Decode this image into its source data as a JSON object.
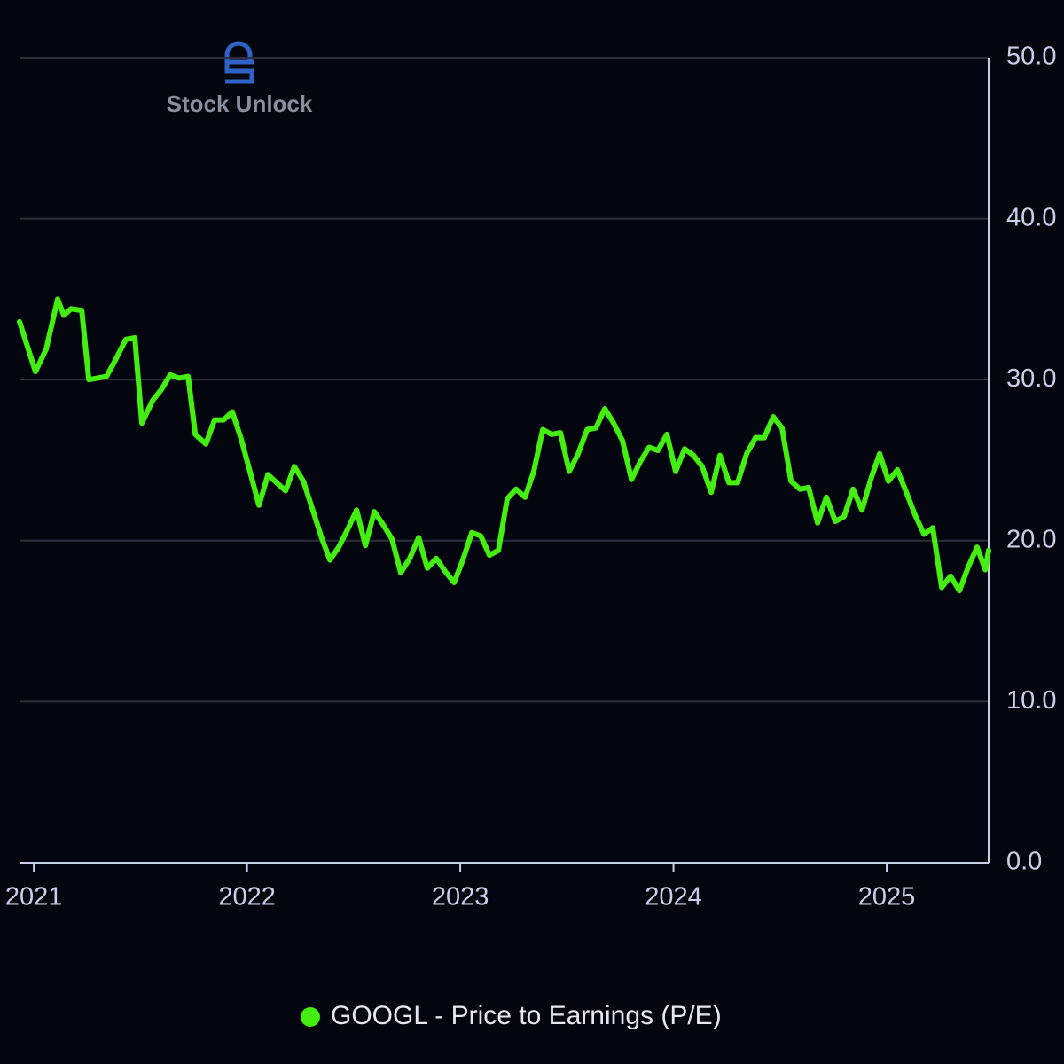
{
  "chart_data": {
    "type": "line",
    "watermark": "Stock Unlock",
    "x": [
      2020.933,
      2021.008,
      2021.058,
      2021.112,
      2021.141,
      2021.175,
      2021.225,
      2021.258,
      2021.341,
      2021.374,
      2021.432,
      2021.474,
      2021.507,
      2021.557,
      2021.599,
      2021.64,
      2021.682,
      2021.724,
      2021.757,
      2021.807,
      2021.848,
      2021.89,
      2021.931,
      2021.973,
      2022.056,
      2022.098,
      2022.139,
      2022.181,
      2022.222,
      2022.264,
      2022.306,
      2022.347,
      2022.389,
      2022.43,
      2022.472,
      2022.514,
      2022.555,
      2022.597,
      2022.638,
      2022.68,
      2022.721,
      2022.763,
      2022.805,
      2022.846,
      2022.888,
      2022.929,
      2022.971,
      2023.012,
      2023.054,
      2023.096,
      2023.137,
      2023.179,
      2023.22,
      2023.262,
      2023.304,
      2023.345,
      2023.387,
      2023.428,
      2023.47,
      2023.511,
      2023.553,
      2023.595,
      2023.636,
      2023.678,
      2023.719,
      2023.761,
      2023.803,
      2023.844,
      2023.886,
      2023.927,
      2023.969,
      2024.01,
      2024.052,
      2024.094,
      2024.135,
      2024.177,
      2024.218,
      2024.26,
      2024.301,
      2024.343,
      2024.385,
      2024.426,
      2024.468,
      2024.509,
      2024.551,
      2024.593,
      2024.634,
      2024.676,
      2024.717,
      2024.759,
      2024.8,
      2024.842,
      2024.884,
      2024.925,
      2024.967,
      2025.008,
      2025.05,
      2025.092,
      2025.133,
      2025.175,
      2025.216,
      2025.258,
      2025.299,
      2025.341,
      2025.383,
      2025.424,
      2025.462,
      2025.478
    ],
    "series": [
      {
        "name": "GOOGL - Price to Earnings (P/E)",
        "color": "#44ee11",
        "values": [
          33.6,
          30.5,
          31.9,
          35.0,
          34.0,
          34.4,
          34.3,
          30.0,
          30.2,
          31.0,
          32.5,
          32.6,
          27.3,
          28.7,
          29.4,
          30.3,
          30.1,
          30.2,
          26.6,
          26.0,
          27.5,
          27.5,
          28.0,
          26.3,
          22.2,
          24.1,
          23.6,
          23.1,
          24.6,
          23.7,
          22.0,
          20.3,
          18.8,
          19.6,
          20.7,
          21.9,
          19.7,
          21.8,
          21.0,
          20.1,
          18.0,
          18.9,
          20.2,
          18.3,
          18.9,
          18.1,
          17.4,
          18.8,
          20.5,
          20.3,
          19.1,
          19.4,
          22.6,
          23.2,
          22.7,
          24.3,
          26.9,
          26.6,
          26.7,
          24.3,
          25.4,
          26.9,
          27.0,
          28.2,
          27.3,
          26.2,
          23.8,
          24.9,
          25.8,
          25.6,
          26.6,
          24.3,
          25.7,
          25.3,
          24.6,
          23.0,
          25.3,
          23.6,
          23.6,
          25.4,
          26.4,
          26.4,
          27.7,
          27.0,
          23.7,
          23.2,
          23.3,
          21.1,
          22.7,
          21.2,
          21.5,
          23.2,
          21.9,
          23.8,
          25.4,
          23.7,
          24.4,
          23.0,
          21.6,
          20.4,
          20.8,
          17.1,
          17.8,
          16.9,
          18.4,
          19.6,
          18.2,
          19.4
        ]
      }
    ],
    "xlim": [
      2020.933,
      2025.478
    ],
    "xticks": [
      2021,
      2022,
      2023,
      2024,
      2025
    ],
    "ylim": [
      0,
      50
    ],
    "yticks": [
      {
        "value": 0,
        "label": "0.0"
      },
      {
        "value": 10,
        "label": "10.0"
      },
      {
        "value": 20,
        "label": "20.0"
      },
      {
        "value": 30,
        "label": "30.0"
      },
      {
        "value": 40,
        "label": "40.0"
      },
      {
        "value": 50,
        "label": "50.0"
      }
    ],
    "grid": true
  }
}
